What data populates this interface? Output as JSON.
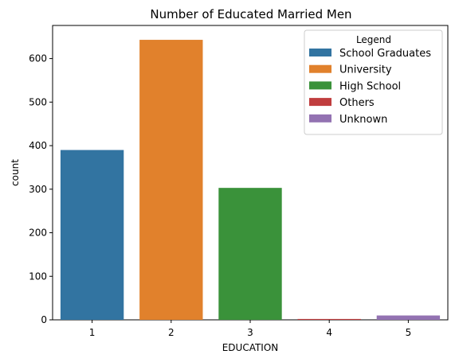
{
  "chart_data": {
    "type": "bar",
    "title": "Number of Educated Married Men",
    "xlabel": "EDUCATION",
    "ylabel": "count",
    "categories": [
      "1",
      "2",
      "3",
      "4",
      "5"
    ],
    "values": [
      390,
      643,
      303,
      2,
      10
    ],
    "colors": [
      "#3274a1",
      "#e1812c",
      "#3a923a",
      "#c03d3e",
      "#9372b2"
    ],
    "ylim": [
      0,
      676
    ],
    "yticks": [
      0,
      100,
      200,
      300,
      400,
      500,
      600
    ],
    "grid": false,
    "legend": {
      "title": "Legend",
      "placement": "top-right",
      "entries": [
        {
          "label": "School Graduates",
          "color": "#3274a1"
        },
        {
          "label": "University",
          "color": "#e1812c"
        },
        {
          "label": "High School",
          "color": "#3a923a"
        },
        {
          "label": "Others",
          "color": "#c03d3e"
        },
        {
          "label": "Unknown",
          "color": "#9372b2"
        }
      ]
    }
  }
}
